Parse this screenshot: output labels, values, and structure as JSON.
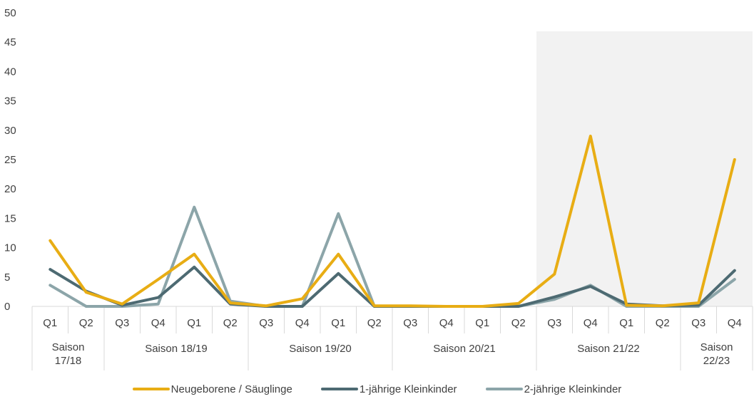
{
  "chart_data": {
    "type": "line",
    "ylim": [
      0,
      50
    ],
    "yticks": [
      0,
      5,
      10,
      15,
      20,
      25,
      30,
      35,
      40,
      45,
      50
    ],
    "grid": false,
    "legend_position": "bottom",
    "highlight_categories": [
      14,
      19
    ],
    "highlight_color": "#f2f2f2",
    "categories": [
      "Q1",
      "Q2",
      "Q3",
      "Q4",
      "Q1",
      "Q2",
      "Q3",
      "Q4",
      "Q1",
      "Q2",
      "Q3",
      "Q4",
      "Q1",
      "Q2",
      "Q3",
      "Q4",
      "Q1",
      "Q2",
      "Q3",
      "Q4"
    ],
    "seasons": [
      {
        "label": "Saison\n17/18",
        "span": 2
      },
      {
        "label": "Saison 18/19",
        "span": 4
      },
      {
        "label": "Saison 19/20",
        "span": 4
      },
      {
        "label": "Saison 20/21",
        "span": 4
      },
      {
        "label": "Saison 21/22",
        "span": 4
      },
      {
        "label": "Saison\n22/23",
        "span": 2
      }
    ],
    "series": [
      {
        "name": "Neugeborene / Säuglinge",
        "color": "#e8ad14",
        "values": [
          11.2,
          2.4,
          0.4,
          4.6,
          8.9,
          0.6,
          0.1,
          1.3,
          8.9,
          0.1,
          0.1,
          0.0,
          0.0,
          0.5,
          5.5,
          29.0,
          0.2,
          0.1,
          0.6,
          25.0
        ]
      },
      {
        "name": "1-jährige Kleinkinder",
        "color": "#4d6a72",
        "values": [
          6.3,
          2.6,
          0.2,
          1.5,
          6.7,
          0.4,
          0.0,
          0.0,
          5.6,
          0.0,
          0.0,
          0.0,
          0.0,
          0.0,
          1.6,
          3.4,
          0.4,
          0.1,
          0.2,
          6.1
        ]
      },
      {
        "name": "2-jährige Kleinkinder",
        "color": "#8ca5a9",
        "values": [
          3.6,
          0.0,
          0.0,
          0.4,
          16.9,
          0.9,
          0.0,
          0.0,
          15.8,
          0.0,
          0.0,
          0.0,
          0.0,
          0.0,
          1.2,
          3.6,
          0.0,
          0.0,
          0.0,
          4.6
        ]
      }
    ]
  }
}
